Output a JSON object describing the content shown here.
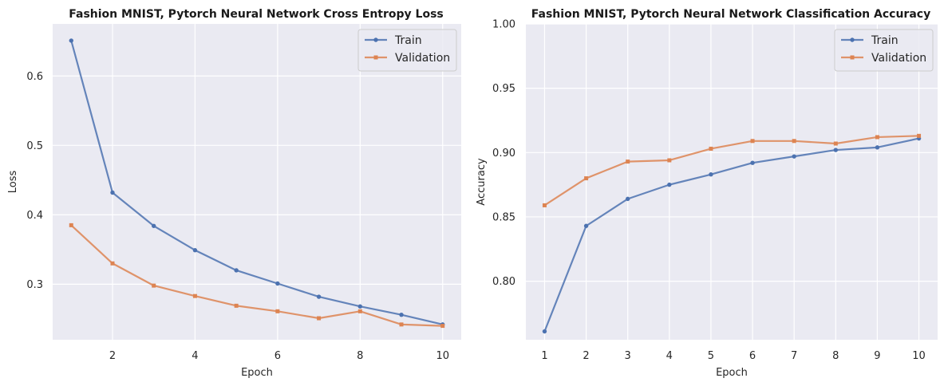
{
  "chart_data": [
    {
      "type": "line",
      "title": "Fashion MNIST, Pytorch Neural Network Cross Entropy Loss",
      "xlabel": "Epoch",
      "ylabel": "Loss",
      "x": [
        1,
        2,
        3,
        4,
        5,
        6,
        7,
        8,
        9,
        10
      ],
      "xlim": [
        0.55,
        10.45
      ],
      "ylim": [
        0.22,
        0.675
      ],
      "xticks": [
        2,
        4,
        6,
        8,
        10
      ],
      "yticks": [
        0.3,
        0.4,
        0.5,
        0.6
      ],
      "xtick_labels": [
        "2",
        "4",
        "6",
        "8",
        "10"
      ],
      "ytick_labels": [
        "0.3",
        "0.4",
        "0.5",
        "0.6"
      ],
      "grid": true,
      "legend_position": "top-right",
      "series": [
        {
          "name": "Train",
          "color": "#4c72b0",
          "marker": "circle",
          "values": [
            0.651,
            0.432,
            0.384,
            0.349,
            0.32,
            0.301,
            0.282,
            0.268,
            0.256,
            0.242
          ]
        },
        {
          "name": "Validation",
          "color": "#dd8452",
          "marker": "square",
          "values": [
            0.385,
            0.33,
            0.298,
            0.283,
            0.269,
            0.261,
            0.251,
            0.261,
            0.242,
            0.24
          ]
        }
      ]
    },
    {
      "type": "line",
      "title": "Fashion MNIST, Pytorch Neural Network Classification Accuracy",
      "xlabel": "Epoch",
      "ylabel": "Accuracy",
      "x": [
        1,
        2,
        3,
        4,
        5,
        6,
        7,
        8,
        9,
        10
      ],
      "xlim": [
        0.55,
        10.45
      ],
      "ylim": [
        0.7545,
        1.0
      ],
      "xticks": [
        1,
        2,
        3,
        4,
        5,
        6,
        7,
        8,
        9,
        10
      ],
      "yticks": [
        0.8,
        0.85,
        0.9,
        0.95,
        1.0
      ],
      "xtick_labels": [
        "1",
        "2",
        "3",
        "4",
        "5",
        "6",
        "7",
        "8",
        "9",
        "10"
      ],
      "ytick_labels": [
        "0.80",
        "0.85",
        "0.90",
        "0.95",
        "1.00"
      ],
      "grid": true,
      "legend_position": "top-right",
      "series": [
        {
          "name": "Train",
          "color": "#4c72b0",
          "marker": "circle",
          "values": [
            0.761,
            0.843,
            0.864,
            0.875,
            0.883,
            0.892,
            0.897,
            0.902,
            0.904,
            0.911
          ]
        },
        {
          "name": "Validation",
          "color": "#dd8452",
          "marker": "square",
          "values": [
            0.859,
            0.88,
            0.893,
            0.894,
            0.903,
            0.909,
            0.909,
            0.907,
            0.912,
            0.913
          ]
        }
      ]
    }
  ]
}
